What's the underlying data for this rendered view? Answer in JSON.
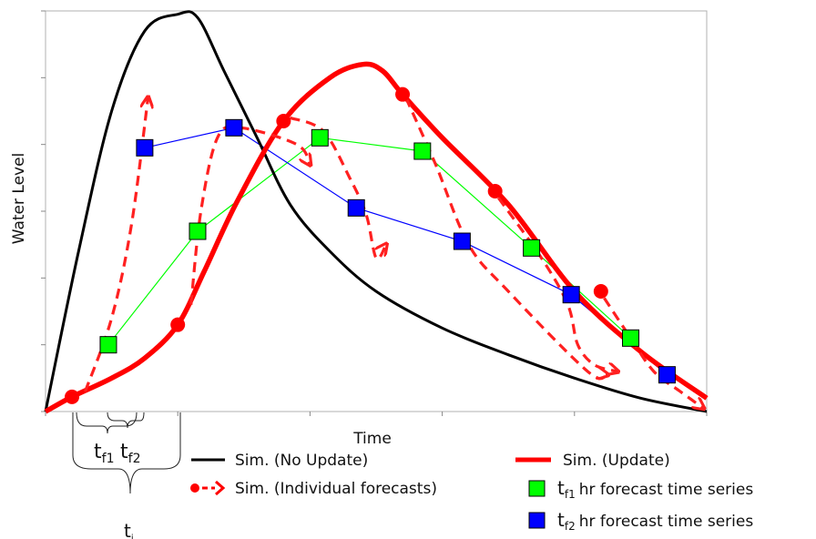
{
  "chart_data": {
    "type": "line",
    "xlabel": "Time",
    "ylabel": "Water Level",
    "xlim": [
      0,
      10
    ],
    "ylim": [
      0,
      6
    ],
    "grid": false,
    "legend_position": "bottom",
    "series": [
      {
        "name": "Sim. (No Update)",
        "color": "#000000",
        "style": "solid",
        "points": [
          [
            0,
            0
          ],
          [
            0.5,
            2.4
          ],
          [
            1,
            4.5
          ],
          [
            1.5,
            5.7
          ],
          [
            2.0,
            5.95
          ],
          [
            2.3,
            5.9
          ],
          [
            2.7,
            5.1
          ],
          [
            3.2,
            4.1
          ],
          [
            3.7,
            3.1
          ],
          [
            4.3,
            2.4
          ],
          [
            5,
            1.8
          ],
          [
            6,
            1.25
          ],
          [
            7,
            0.85
          ],
          [
            8,
            0.5
          ],
          [
            9,
            0.2
          ],
          [
            10,
            0
          ]
        ]
      },
      {
        "name": "Sim. (Update)",
        "color": "#ff0000",
        "style": "solid-thick",
        "points": [
          [
            0,
            0
          ],
          [
            0.4,
            0.22
          ],
          [
            1,
            0.5
          ],
          [
            1.5,
            0.8
          ],
          [
            2,
            1.3
          ],
          [
            2.4,
            2.1
          ],
          [
            2.9,
            3.15
          ],
          [
            3.6,
            4.35
          ],
          [
            4.3,
            5.0
          ],
          [
            4.8,
            5.2
          ],
          [
            5.1,
            5.1
          ],
          [
            5.4,
            4.75
          ],
          [
            6,
            4.1
          ],
          [
            7,
            3.1
          ],
          [
            8,
            1.8
          ],
          [
            9,
            0.9
          ],
          [
            10,
            0.2
          ]
        ]
      },
      {
        "name": "t_f1 hr forecast time series",
        "color": "#00ff00",
        "marker": "square",
        "points": [
          [
            0.95,
            1.0
          ],
          [
            2.3,
            2.7
          ],
          [
            4.15,
            4.1
          ],
          [
            5.7,
            3.9
          ],
          [
            7.35,
            2.45
          ],
          [
            8.85,
            1.1
          ]
        ]
      },
      {
        "name": "t_f2 hr forecast time series",
        "color": "#0000ff",
        "marker": "square",
        "points": [
          [
            1.5,
            3.95
          ],
          [
            2.85,
            4.25
          ],
          [
            4.7,
            3.05
          ],
          [
            6.3,
            2.55
          ],
          [
            7.95,
            1.75
          ],
          [
            9.4,
            0.55
          ]
        ]
      }
    ],
    "update_points": [
      [
        0.4,
        0.22
      ],
      [
        2.0,
        1.3
      ],
      [
        3.6,
        4.35
      ],
      [
        5.4,
        4.75
      ],
      [
        6.8,
        3.3
      ],
      [
        8.4,
        1.8
      ]
    ],
    "individual_forecasts": [
      [
        [
          0.6,
          0.3
        ],
        [
          1.0,
          1.4
        ],
        [
          1.3,
          2.8
        ],
        [
          1.55,
          4.7
        ]
      ],
      [
        [
          2.2,
          1.6
        ],
        [
          2.35,
          3.0
        ],
        [
          2.6,
          4.1
        ],
        [
          2.95,
          4.25
        ],
        [
          3.8,
          4.0
        ],
        [
          4.0,
          3.7
        ]
      ],
      [
        [
          3.7,
          4.4
        ],
        [
          4.2,
          4.2
        ],
        [
          4.6,
          3.5
        ],
        [
          4.85,
          2.95
        ],
        [
          5.0,
          2.3
        ],
        [
          5.15,
          2.5
        ]
      ],
      [
        [
          5.45,
          4.7
        ],
        [
          5.9,
          3.7
        ],
        [
          6.4,
          2.5
        ],
        [
          7.0,
          1.8
        ],
        [
          8.2,
          0.6
        ],
        [
          8.5,
          0.55
        ]
      ],
      [
        [
          6.85,
          3.2
        ],
        [
          7.5,
          2.3
        ],
        [
          7.9,
          1.6
        ],
        [
          8.05,
          1.0
        ],
        [
          8.3,
          0.7
        ],
        [
          8.65,
          0.6
        ]
      ],
      [
        [
          8.45,
          1.7
        ],
        [
          8.85,
          1.1
        ],
        [
          9.2,
          0.6
        ],
        [
          9.6,
          0.3
        ],
        [
          9.95,
          0.05
        ]
      ]
    ],
    "annotations": [
      {
        "base": "t",
        "sub": "f1"
      },
      {
        "base": "t",
        "sub": "f2"
      },
      {
        "base": "t",
        "sub": "i"
      }
    ]
  },
  "legend": {
    "no_update": "Sim. (No Update)",
    "update": "Sim. (Update)",
    "individual": "Sim. (Individual forecasts)",
    "tf1_base": "t",
    "tf1_sub": "f1",
    "tf1_text": "hr forecast time series",
    "tf2_base": "t",
    "tf2_sub": "f2",
    "tf2_text": "hr forecast time series"
  }
}
